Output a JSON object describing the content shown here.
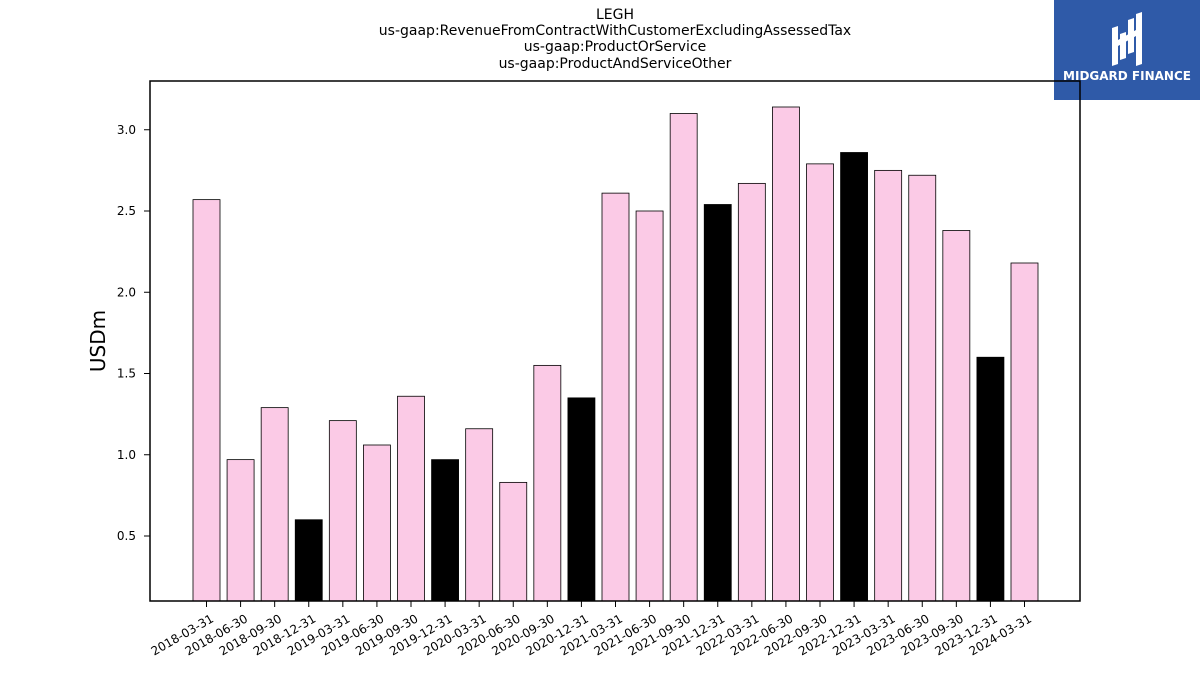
{
  "chart_data": {
    "type": "bar",
    "title_lines": [
      "LEGH",
      "us-gaap:RevenueFromContractWithCustomerExcludingAssessedTax",
      "us-gaap:ProductOrService",
      "us-gaap:ProductAndServiceOther"
    ],
    "xlabel": "",
    "ylabel": "USDm",
    "ylim": [
      0.1,
      3.3
    ],
    "yticks": [
      "0.5",
      "1.0",
      "1.5",
      "2.0",
      "2.5",
      "3.0"
    ],
    "grid": false,
    "categories": [
      "2018-03-31",
      "2018-06-30",
      "2018-09-30",
      "2018-12-31",
      "2019-03-31",
      "2019-06-30",
      "2019-09-30",
      "2019-12-31",
      "2020-03-31",
      "2020-06-30",
      "2020-09-30",
      "2020-12-31",
      "2021-03-31",
      "2021-06-30",
      "2021-09-30",
      "2021-12-31",
      "2022-03-31",
      "2022-06-30",
      "2022-09-30",
      "2022-12-31",
      "2023-03-31",
      "2023-06-30",
      "2023-09-30",
      "2023-12-31",
      "2024-03-31"
    ],
    "values": [
      2.57,
      0.97,
      1.29,
      0.6,
      1.21,
      1.06,
      1.36,
      0.97,
      1.16,
      0.83,
      1.55,
      1.35,
      2.61,
      2.5,
      3.1,
      2.54,
      2.67,
      3.14,
      2.79,
      2.86,
      2.75,
      2.72,
      2.38,
      1.6,
      2.18
    ],
    "year_end_dates": [
      "2018-12-31",
      "2019-12-31",
      "2020-12-31",
      "2021-12-31",
      "2022-12-31",
      "2023-12-31"
    ],
    "colors": {
      "quarter_bar": "#fbcae6",
      "year_end_bar": "#000000",
      "bar_edge": "#000000"
    }
  },
  "logo": {
    "text": "MIDGARD FINANCE",
    "background": "#2f5aa8",
    "foreground": "#ffffff"
  }
}
